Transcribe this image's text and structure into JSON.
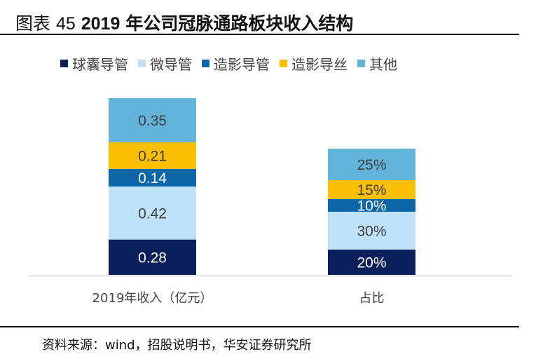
{
  "title": {
    "prefix": "图表",
    "number": "45",
    "year": "2019",
    "text": "年公司冠脉通路板块收入结构"
  },
  "source": "资料来源：wind，招股说明书，华安证券研究所",
  "chart_data": {
    "type": "bar",
    "stacked": true,
    "title": "",
    "legend_placement": "top",
    "grid": false,
    "categories": [
      "2019年收入（亿元）",
      "占比"
    ],
    "series": [
      {
        "name": "球囊导管",
        "color": "#0b1f5c",
        "label_color": "#ffffff",
        "values": [
          0.28,
          20
        ],
        "labels": [
          "0.28",
          "20%"
        ]
      },
      {
        "name": "微导管",
        "color": "#bfe2f8",
        "label_color": "#404040",
        "values": [
          0.42,
          30
        ],
        "labels": [
          "0.42",
          "30%"
        ]
      },
      {
        "name": "造影导管",
        "color": "#0d66a8",
        "label_color": "#ffffff",
        "values": [
          0.14,
          10
        ],
        "labels": [
          "0.14",
          "10%"
        ]
      },
      {
        "name": "造影导丝",
        "color": "#fbbf05",
        "label_color": "#404040",
        "values": [
          0.21,
          15
        ],
        "labels": [
          "0.21",
          "15%"
        ]
      },
      {
        "name": "其他",
        "color": "#62b4da",
        "label_color": "#404040",
        "values": [
          0.35,
          25
        ],
        "labels": [
          "0.35",
          "25%"
        ]
      }
    ]
  }
}
